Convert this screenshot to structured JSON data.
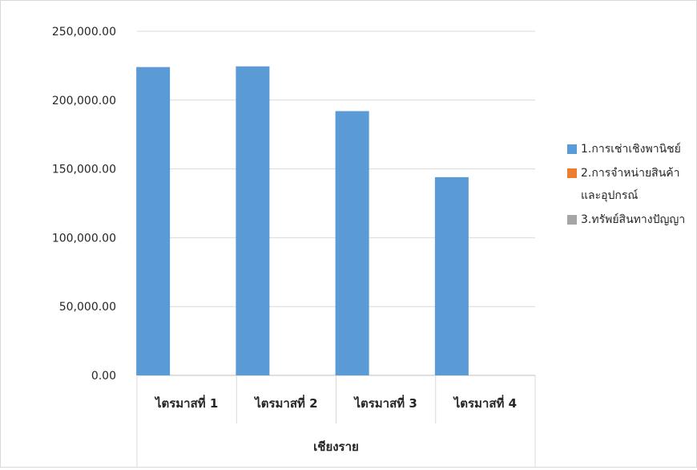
{
  "chart_data": {
    "type": "bar",
    "title": "",
    "categories": [
      "ไตรมาสที่ 1",
      "ไตรมาสที่ 2",
      "ไตรมาสที่ 3",
      "ไตรมาสที่ 4"
    ],
    "group_label": "เชียงราย",
    "ylim": [
      0,
      250000
    ],
    "yticks": [
      0,
      50000,
      100000,
      150000,
      200000,
      250000
    ],
    "ytick_labels": [
      "0.00",
      "50,000.00",
      "100,000.00",
      "150,000.00",
      "200,000.00",
      "250,000.00"
    ],
    "grid": true,
    "legend_position": "right",
    "series": [
      {
        "name": "1.การเช่าเชิงพานิชย์",
        "color": "#5b9bd5",
        "values": [
          224000,
          224500,
          192000,
          144000
        ]
      },
      {
        "name": "2.การจำหน่ายสินค้าและอุปกรณ์",
        "color": "#ed7d31",
        "values": [
          0,
          0,
          0,
          0
        ]
      },
      {
        "name": "3.ทรัพย์สินทางปัญญา",
        "color": "#a5a5a5",
        "values": [
          0,
          0,
          0,
          0
        ]
      }
    ]
  }
}
